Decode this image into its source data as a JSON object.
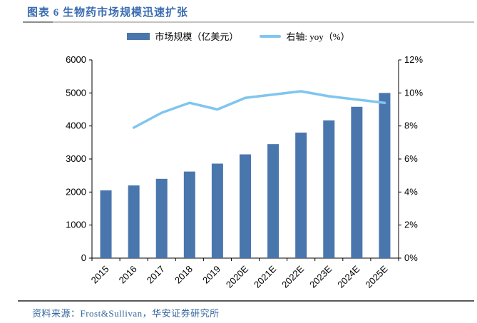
{
  "header": {
    "title": "图表 6 生物药市场规模迅速扩张"
  },
  "footer": {
    "source": "资料来源：Frost&Sullivan，华安证券研究所"
  },
  "colors": {
    "bar": "#4a76ae",
    "line": "#7fc5ef",
    "title_text": "#3a6cb0",
    "source_text": "#34669e",
    "axis": "#000000"
  },
  "chart_data": {
    "type": "bar",
    "subtype": "bar+line combo, dual axis",
    "title": "生物药市场规模迅速扩张",
    "categories": [
      "2015",
      "2016",
      "2017",
      "2018",
      "2019",
      "2020E",
      "2021E",
      "2022E",
      "2023E",
      "2024E",
      "2025E"
    ],
    "series": [
      {
        "name": "市场规模（亿美元）",
        "type": "bar",
        "axis": "left",
        "color": "#4a76ae",
        "values": [
          2050,
          2200,
          2400,
          2620,
          2860,
          3140,
          3450,
          3800,
          4170,
          4580,
          5000
        ]
      },
      {
        "name": "右轴: yoy（%）",
        "type": "line",
        "axis": "right",
        "color": "#7fc5ef",
        "values": [
          null,
          7.9,
          8.8,
          9.4,
          9.0,
          9.7,
          9.9,
          10.1,
          9.8,
          9.6,
          9.4
        ]
      }
    ],
    "left_axis": {
      "min": 0,
      "max": 6000,
      "step": 1000,
      "tick_labels": [
        "0",
        "1000",
        "2000",
        "3000",
        "4000",
        "5000",
        "6000"
      ]
    },
    "right_axis": {
      "min": 0,
      "max": 12,
      "step": 2,
      "tick_labels": [
        "0%",
        "2%",
        "4%",
        "6%",
        "8%",
        "10%",
        "12%"
      ]
    },
    "grid": false,
    "legend_position": "top-center",
    "x_tick_rotation_deg": 45
  }
}
